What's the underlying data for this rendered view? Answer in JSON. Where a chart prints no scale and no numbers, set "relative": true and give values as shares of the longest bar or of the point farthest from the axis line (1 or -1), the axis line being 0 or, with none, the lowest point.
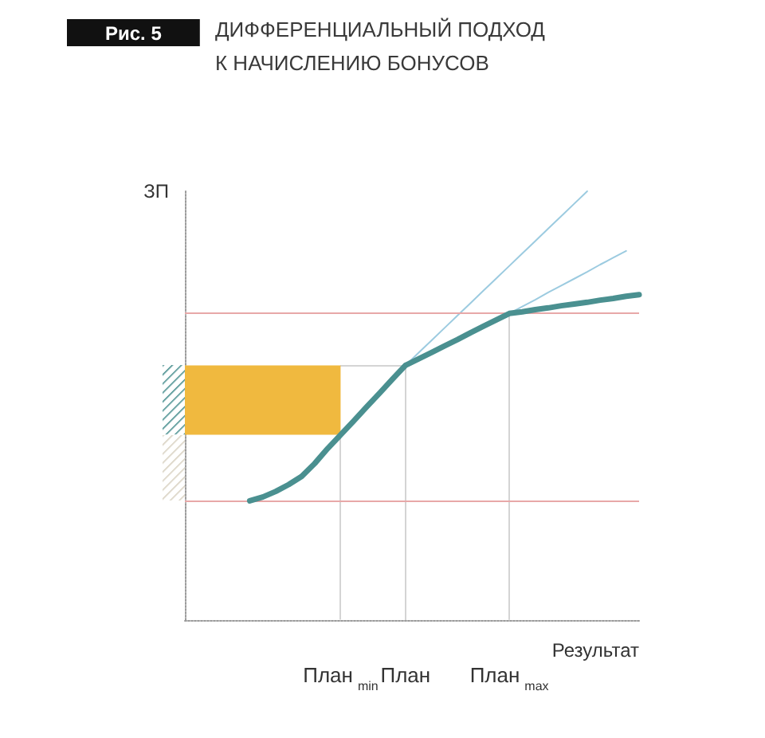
{
  "chart_data": {
    "type": "line",
    "title": "ДИФФЕРЕНЦИАЛЬНЫЙ ПОДХОД К НАЧИСЛЕНИЮ БОНУСОВ",
    "annotations": [
      "Рис. 5"
    ],
    "xlabel": "Результат",
    "ylabel": "ЗП",
    "relative": true,
    "categories": [
      null,
      null,
      null,
      null,
      null,
      null,
      null,
      null,
      null,
      null,
      null,
      null,
      "План$_{min}$",
      null,
      null,
      null,
      null,
      "План",
      null,
      null,
      null,
      null,
      null,
      null,
      null,
      "План$_{max}$",
      null,
      null,
      null,
      null,
      null,
      null,
      null,
      null,
      null,
      null
    ],
    "series": [
      {
        "color": "#4a9090",
        "values": [
          null,
          null,
          null,
          null,
          null,
          0.278,
          0.287,
          0.3,
          0.316,
          0.335,
          0.365,
          0.4,
          0.432,
          0.464,
          0.497,
          0.529,
          0.562,
          0.594,
          0.609,
          0.624,
          0.639,
          0.654,
          0.67,
          0.685,
          0.7,
          0.715,
          0.719,
          0.724,
          0.728,
          0.733,
          0.737,
          0.741,
          0.746,
          0.75,
          0.755,
          0.759
        ]
      },
      {
        "color": "#9ccbe0",
        "values": [
          null,
          null,
          null,
          null,
          null,
          null,
          null,
          null,
          null,
          null,
          null,
          null,
          null,
          null,
          null,
          null,
          null,
          0.594,
          0.623,
          0.652,
          0.681,
          0.71,
          0.739,
          0.768,
          0.797,
          0.826,
          0.855,
          0.884,
          0.913,
          0.942,
          0.971,
          1,
          null,
          null,
          null,
          null
        ]
      },
      {
        "color": "#9ccbe0",
        "values": [
          null,
          null,
          null,
          null,
          null,
          null,
          null,
          null,
          null,
          null,
          null,
          null,
          null,
          null,
          null,
          null,
          null,
          null,
          null,
          null,
          null,
          null,
          null,
          null,
          null,
          0.715,
          0.731,
          0.747,
          0.764,
          0.78,
          0.796,
          0.812,
          0.829,
          0.845,
          0.861,
          null
        ]
      }
    ],
    "bands": [
      {
        "axis": "y",
        "from": 0.432,
        "to": 0.594,
        "color": "#f0b93f"
      }
    ],
    "ref_lines": [
      {
        "axis": "y",
        "value": 0.715,
        "color": "#e8a8a8"
      },
      {
        "axis": "y",
        "value": 0.278,
        "color": "#e8a8a8"
      }
    ]
  }
}
